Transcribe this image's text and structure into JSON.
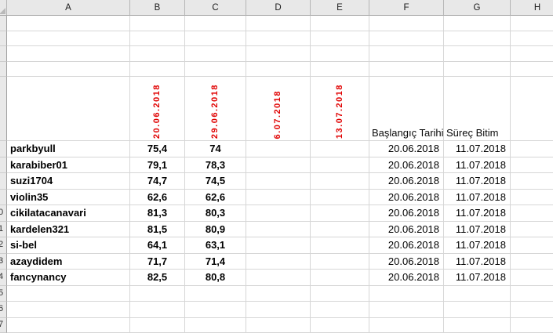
{
  "app": {
    "type": "spreadsheet-grid"
  },
  "colors": {
    "rotated_date_red": "#e00000",
    "header_bg": "#e8e8e8",
    "gridline": "#d6d6d6"
  },
  "column_headers": [
    "A",
    "B",
    "C",
    "D",
    "E",
    "F",
    "G",
    "H"
  ],
  "header_row": {
    "rotated_dates": [
      "20.06.2018",
      "29.06.2018",
      "6.07.2018",
      "13.07.2018"
    ],
    "start_label": "Başlangıç Tarihi",
    "end_label": "Süreç Bitim"
  },
  "rows": [
    {
      "row_digit": "",
      "name": "parkbyull",
      "score1": "75,4",
      "score2": "74",
      "start": "20.06.2018",
      "end": "11.07.2018"
    },
    {
      "row_digit": "",
      "name": "karabiber01",
      "score1": "79,1",
      "score2": "78,3",
      "start": "20.06.2018",
      "end": "11.07.2018"
    },
    {
      "row_digit": "",
      "name": "suzi1704",
      "score1": "74,7",
      "score2": "74,5",
      "start": "20.06.2018",
      "end": "11.07.2018"
    },
    {
      "row_digit": "",
      "name": "violin35",
      "score1": "62,6",
      "score2": "62,6",
      "start": "20.06.2018",
      "end": "11.07.2018"
    },
    {
      "row_digit": "0",
      "name": "cikilatacanavari",
      "score1": "81,3",
      "score2": "80,3",
      "start": "20.06.2018",
      "end": "11.07.2018"
    },
    {
      "row_digit": "1",
      "name": "kardelen321",
      "score1": "81,5",
      "score2": "80,9",
      "start": "20.06.2018",
      "end": "11.07.2018"
    },
    {
      "row_digit": "2",
      "name": "si-bel",
      "score1": "64,1",
      "score2": "63,1",
      "start": "20.06.2018",
      "end": "11.07.2018"
    },
    {
      "row_digit": "3",
      "name": "azaydidem",
      "score1": "71,7",
      "score2": "71,4",
      "start": "20.06.2018",
      "end": "11.07.2018"
    },
    {
      "row_digit": "4",
      "name": "fancynancy",
      "score1": "82,5",
      "score2": "80,8",
      "start": "20.06.2018",
      "end": "11.07.2018"
    }
  ],
  "trailing_rows": [
    {
      "row_digit": "5"
    },
    {
      "row_digit": "6"
    },
    {
      "row_digit": "7"
    }
  ]
}
